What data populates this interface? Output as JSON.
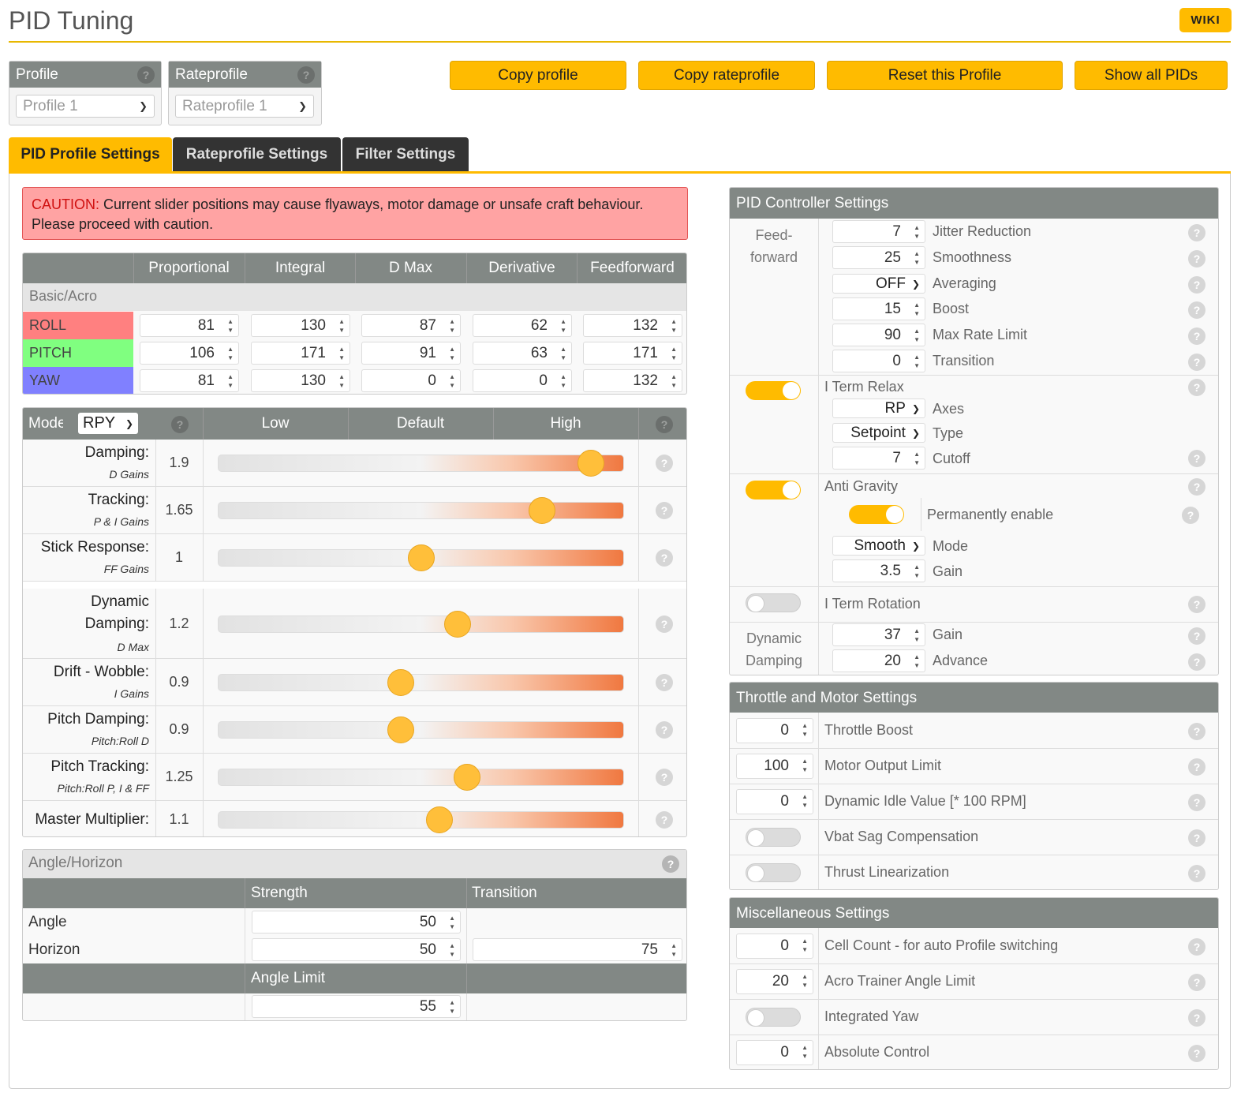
{
  "header": {
    "title": "PID Tuning",
    "wiki": "WIKI"
  },
  "profile": {
    "label": "Profile",
    "value": "Profile 1"
  },
  "rateprofile": {
    "label": "Rateprofile",
    "value": "Rateprofile 1"
  },
  "buttons": {
    "copy_profile": "Copy profile",
    "copy_rateprofile": "Copy rateprofile",
    "reset_profile": "Reset this Profile",
    "show_pids": "Show all PIDs"
  },
  "tabs": [
    "PID Profile Settings",
    "Rateprofile Settings",
    "Filter Settings"
  ],
  "caution": {
    "word": "CAUTION:",
    "text": " Current slider positions may cause flyaways, motor damage or unsafe craft behaviour. Please proceed with caution."
  },
  "pid_table": {
    "columns": [
      "Proportional",
      "Integral",
      "D Max",
      "Derivative",
      "Feedforward"
    ],
    "section": "Basic/Acro",
    "rows": [
      {
        "name": "ROLL",
        "color": "#ff8080",
        "values": [
          "81",
          "130",
          "87",
          "62",
          "132"
        ]
      },
      {
        "name": "PITCH",
        "color": "#80ff80",
        "values": [
          "106",
          "171",
          "91",
          "63",
          "171"
        ]
      },
      {
        "name": "YAW",
        "color": "#8080ff",
        "values": [
          "81",
          "130",
          "0",
          "0",
          "132"
        ]
      }
    ]
  },
  "sliders": {
    "mode_label": "Mode",
    "mode_value": "RPY",
    "cols": [
      "Low",
      "Default",
      "High"
    ],
    "items": [
      {
        "label": "Damping:",
        "sub": "D Gains",
        "value": "1.9",
        "pos": 0.92
      },
      {
        "label": "Tracking:",
        "sub": "P & I Gains",
        "value": "1.65",
        "pos": 0.8
      },
      {
        "label": "Stick Response:",
        "sub": "FF Gains",
        "value": "1",
        "pos": 0.5
      },
      {
        "label1": "Dynamic",
        "label": "Damping:",
        "sub": "D Max",
        "value": "1.2",
        "pos": 0.59
      },
      {
        "label": "Drift - Wobble:",
        "sub": "I Gains",
        "value": "0.9",
        "pos": 0.45
      },
      {
        "label": "Pitch Damping:",
        "sub": "Pitch:Roll D",
        "value": "0.9",
        "pos": 0.45
      },
      {
        "label": "Pitch Tracking:",
        "sub": "Pitch:Roll P, I & FF",
        "value": "1.25",
        "pos": 0.615
      },
      {
        "label": "Master Multiplier:",
        "sub": "",
        "value": "1.1",
        "pos": 0.545
      }
    ]
  },
  "angle_horizon": {
    "title": "Angle/Horizon",
    "strength": "Strength",
    "transition": "Transition",
    "angle_label": "Angle",
    "angle_strength": "50",
    "horizon_label": "Horizon",
    "horizon_strength": "50",
    "horizon_transition": "75",
    "angle_limit_label": "Angle Limit",
    "angle_limit": "55"
  },
  "pid_controller": {
    "title": "PID Controller Settings",
    "ff_label1": "Feed-",
    "ff_label2": "forward",
    "ff": [
      {
        "value": "7",
        "label": "Jitter Reduction"
      },
      {
        "value": "25",
        "label": "Smoothness"
      },
      {
        "value": "OFF",
        "label": "Averaging",
        "type": "select"
      },
      {
        "value": "15",
        "label": "Boost"
      },
      {
        "value": "90",
        "label": "Max Rate Limit"
      },
      {
        "value": "0",
        "label": "Transition"
      }
    ],
    "iterm_relax": {
      "label": "I Term Relax",
      "on": true,
      "axes": "RP",
      "axes_label": "Axes",
      "type": "Setpoint",
      "type_label": "Type",
      "cutoff": "7",
      "cutoff_label": "Cutoff"
    },
    "anti_gravity": {
      "label": "Anti Gravity",
      "on": true,
      "perm_label": "Permanently enable",
      "perm_on": true,
      "mode": "Smooth",
      "mode_label": "Mode",
      "gain": "3.5",
      "gain_label": "Gain"
    },
    "iterm_rotation": {
      "label": "I Term Rotation",
      "on": false
    },
    "dyn_damping": {
      "label1": "Dynamic",
      "label2": "Damping",
      "gain": "37",
      "gain_label": "Gain",
      "advance": "20",
      "advance_label": "Advance"
    }
  },
  "throttle": {
    "title": "Throttle and Motor Settings",
    "items": [
      {
        "value": "0",
        "label": "Throttle Boost"
      },
      {
        "value": "100",
        "label": "Motor Output Limit"
      },
      {
        "value": "0",
        "label": "Dynamic Idle Value [* 100 RPM]"
      },
      {
        "toggle": false,
        "label": "Vbat Sag Compensation"
      },
      {
        "toggle": false,
        "label": "Thrust Linearization"
      }
    ]
  },
  "misc": {
    "title": "Miscellaneous Settings",
    "items": [
      {
        "value": "0",
        "label": "Cell Count - for auto Profile switching"
      },
      {
        "value": "20",
        "label": "Acro Trainer Angle Limit"
      },
      {
        "toggle": false,
        "label": "Integrated Yaw"
      },
      {
        "value": "0",
        "label": "Absolute Control"
      }
    ]
  },
  "colors": {
    "accent": "#ffbb00",
    "header_gray": "#828885",
    "caution_bg": "#ffa3a3"
  }
}
